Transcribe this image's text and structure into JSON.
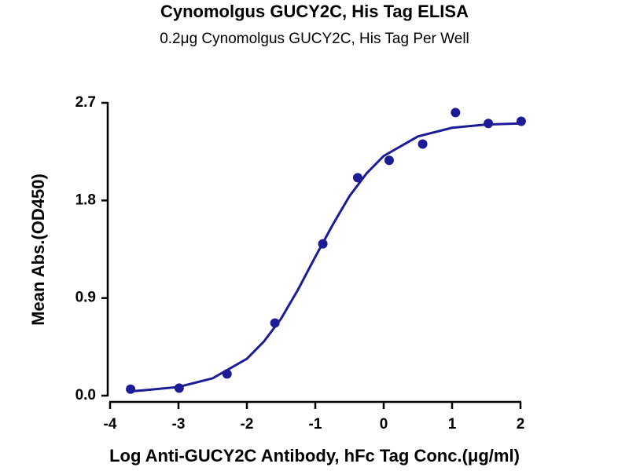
{
  "chart_data": {
    "type": "scatter",
    "title": "Cynomolgus GUCY2C, His Tag ELISA",
    "subtitle": "0.2μg Cynomolgus GUCY2C, His Tag Per Well",
    "x_label": "Log Anti-GUCY2C Antibody, hFc Tag Conc.(μg/ml)",
    "y_label": "Mean Abs.(OD450)",
    "xlim": [
      -4,
      2
    ],
    "xticks": [
      -4,
      -3,
      -2,
      -1,
      0,
      1,
      2
    ],
    "ylim": [
      0,
      2.7
    ],
    "yticks": [
      {
        "value": 0,
        "label": "0.0"
      },
      0.9,
      1.8,
      2.7
    ],
    "grid": false,
    "series": [
      {
        "mode": "markers",
        "color": "#1c1c96",
        "x": [
          -3.7,
          -2.99,
          -2.29,
          -1.59,
          -0.89,
          -0.38,
          0.08,
          0.57,
          1.05,
          1.53,
          2.01
        ],
        "values": [
          0.06,
          0.07,
          0.2,
          0.67,
          1.4,
          2.01,
          2.17,
          2.32,
          2.61,
          2.51,
          2.53
        ]
      },
      {
        "mode": "line",
        "color": "#1c1c96",
        "x": [
          -3.7,
          -3.5,
          -3,
          -2.5,
          -2,
          -1.75,
          -1.5,
          -1.25,
          -1,
          -0.75,
          -0.5,
          -0.25,
          0,
          0.5,
          1,
          1.5,
          2
        ],
        "values": [
          0.04,
          0.05,
          0.08,
          0.16,
          0.34,
          0.5,
          0.71,
          0.98,
          1.28,
          1.57,
          1.84,
          2.05,
          2.21,
          2.39,
          2.47,
          2.5,
          2.51
        ]
      }
    ]
  }
}
